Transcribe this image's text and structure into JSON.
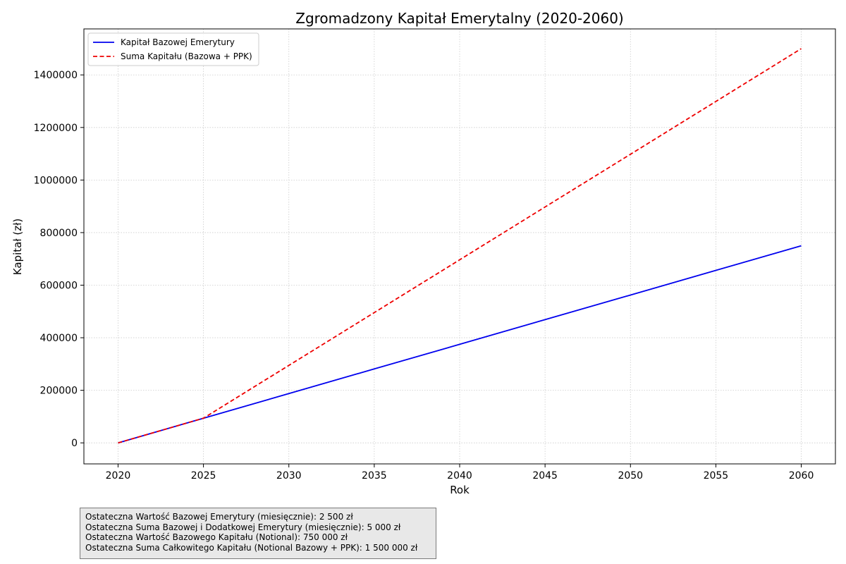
{
  "chart_data": {
    "type": "line",
    "title": "Zgromadzony Kapitał Emerytalny (2020-2060)",
    "xlabel": "Rok",
    "ylabel": "Kapitał (zł)",
    "xlim": [
      2018,
      2062
    ],
    "ylim": [
      -80000,
      1575000
    ],
    "x_ticks": [
      2020,
      2025,
      2030,
      2035,
      2040,
      2045,
      2050,
      2055,
      2060
    ],
    "y_ticks": [
      0,
      200000,
      400000,
      600000,
      800000,
      1000000,
      1200000,
      1400000
    ],
    "grid": true,
    "legend_position": "top-left",
    "series": [
      {
        "name": "Kapitał Bazowej Emerytury",
        "color": "#0000ee",
        "style": "solid",
        "x": [
          2020,
          2025,
          2030,
          2035,
          2040,
          2045,
          2050,
          2055,
          2060
        ],
        "y": [
          0,
          93750,
          187500,
          281250,
          375000,
          468750,
          562500,
          656250,
          750000
        ]
      },
      {
        "name": "Suma Kapitału (Bazowa + PPK)",
        "color": "#ee0000",
        "style": "dashed",
        "x": [
          2020,
          2025,
          2030,
          2035,
          2040,
          2045,
          2050,
          2055,
          2060
        ],
        "y": [
          0,
          93750,
          294643,
          495536,
          696429,
          897321,
          1098214,
          1299107,
          1500000
        ]
      }
    ]
  },
  "summary": {
    "lines": [
      "Ostateczna Wartość Bazowej Emerytury (miesięcznie): 2 500 zł",
      "Ostateczna Suma Bazowej i Dodatkowej Emerytury (miesięcznie): 5 000 zł",
      "Ostateczna Wartość Bazowego Kapitału (Notional): 750 000 zł",
      "Ostateczna Suma Całkowitego Kapitału (Notional Bazowy + PPK): 1 500 000 zł"
    ]
  }
}
